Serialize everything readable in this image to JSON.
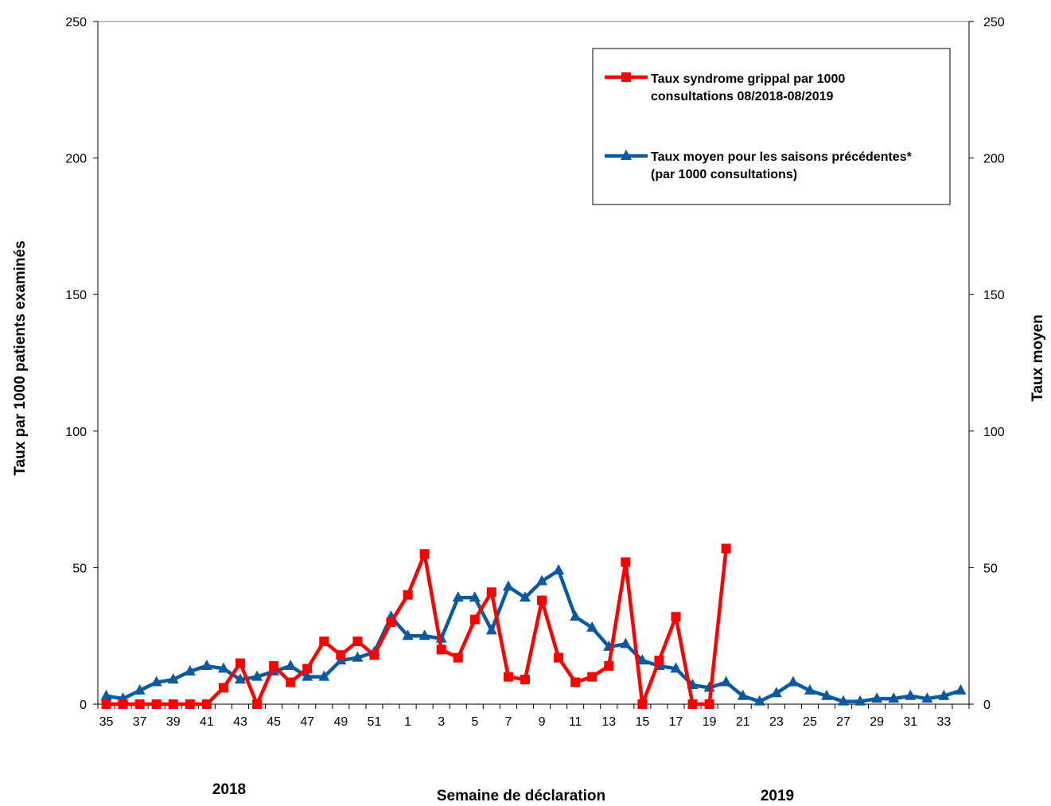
{
  "chart_data": {
    "type": "line",
    "xlabel": "Semaine de déclaration",
    "ylabel_left": "Taux par 1000 patients examinés",
    "ylabel_right": "Taux moyen",
    "year_labels": [
      "2018",
      "2019"
    ],
    "ylim": [
      0,
      250
    ],
    "y_ticks": [
      0,
      50,
      100,
      150,
      200,
      250
    ],
    "grid": false,
    "legend_position": "top-right",
    "weeks": [
      35,
      36,
      37,
      38,
      39,
      40,
      41,
      42,
      43,
      44,
      45,
      46,
      47,
      48,
      49,
      50,
      51,
      52,
      1,
      2,
      3,
      4,
      5,
      6,
      7,
      8,
      9,
      10,
      11,
      12,
      13,
      14,
      15,
      16,
      17,
      18,
      19,
      20,
      21,
      22,
      23,
      24,
      25,
      26,
      27,
      28,
      29,
      30,
      31,
      32,
      33,
      34
    ],
    "x_tick_labels": [
      "35",
      "37",
      "39",
      "41",
      "43",
      "45",
      "47",
      "49",
      "51",
      "1",
      "3",
      "5",
      "7",
      "9",
      "11",
      "13",
      "15",
      "17",
      "19",
      "21",
      "23",
      "25",
      "27",
      "29",
      "31",
      "33"
    ],
    "series": [
      {
        "name": "Taux syndrome grippal par 1000 consultations 08/2018-08/2019",
        "color": "#ff0000",
        "marker": "square",
        "values": [
          0,
          0,
          0,
          0,
          0,
          0,
          0,
          6,
          15,
          0,
          14,
          8,
          13,
          23,
          18,
          23,
          18,
          30,
          40,
          55,
          20,
          17,
          31,
          41,
          10,
          9,
          38,
          17,
          8,
          10,
          14,
          52,
          0,
          16,
          32,
          0,
          0,
          57
        ]
      },
      {
        "name": "Taux moyen pour les saisons précédentes* (par 1000 consultations)",
        "color": "#0b5aa0",
        "marker": "triangle",
        "values": [
          3,
          2,
          5,
          8,
          9,
          12,
          14,
          13,
          9,
          10,
          12,
          14,
          10,
          10,
          16,
          17,
          19,
          32,
          25,
          25,
          24,
          39,
          39,
          27,
          43,
          39,
          45,
          49,
          32,
          28,
          21,
          22,
          16,
          14,
          13,
          7,
          6,
          8,
          3,
          1,
          4,
          8,
          5,
          3,
          1,
          1,
          2,
          2,
          3,
          2,
          3,
          5
        ]
      }
    ]
  }
}
